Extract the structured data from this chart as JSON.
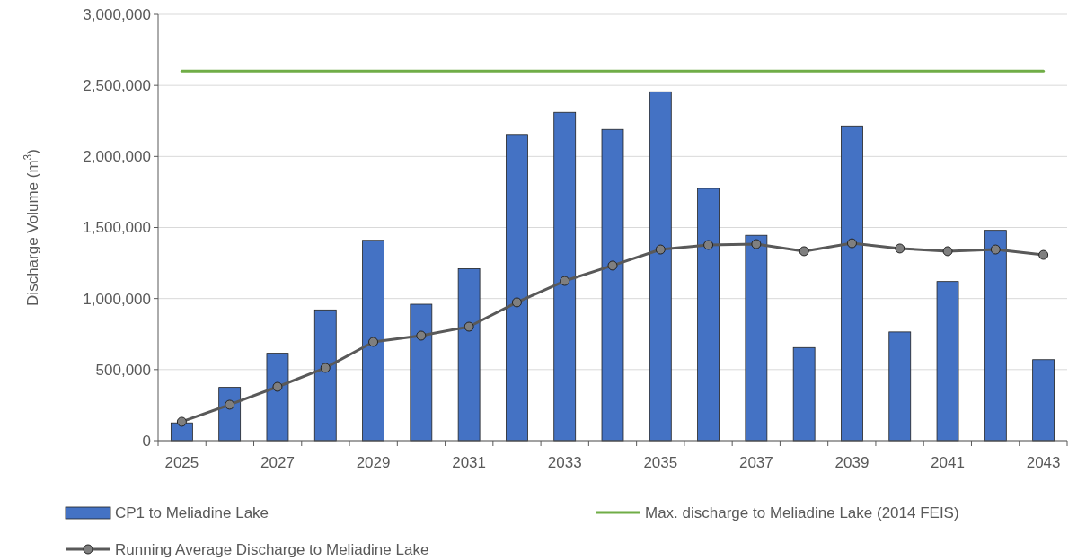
{
  "chart_data": {
    "type": "bar",
    "categories": [
      "2025",
      null,
      "2027",
      null,
      "2029",
      null,
      "2031",
      null,
      "2033",
      null,
      "2035",
      null,
      "2037",
      null,
      "2039",
      null,
      "2041",
      null,
      "2043"
    ],
    "ylabel": "Discharge Volume (m$^{3}$)",
    "ylim": [
      0,
      3000000
    ],
    "yticks": [
      {
        "value": 0,
        "label": "0"
      },
      {
        "value": 500000,
        "label": "500,000"
      },
      {
        "value": 1000000,
        "label": "1,000,000"
      },
      {
        "value": 1500000,
        "label": "1,500,000"
      },
      {
        "value": 2000000,
        "label": "2,000,000"
      },
      {
        "value": 2500000,
        "label": "2,500,000"
      },
      {
        "value": 3000000,
        "label": "3,000,000"
      }
    ],
    "grid": "y",
    "legend": "bottom",
    "series": [
      {
        "name": "CP1 to Meliadine Lake",
        "color": "#4472c4",
        "values": [
          125000,
          375000,
          615000,
          920000,
          1410000,
          960000,
          1210000,
          2155000,
          2310000,
          2190000,
          2455000,
          1775000,
          1445000,
          655000,
          2215000,
          765000,
          1120000,
          1480000,
          570000
        ]
      },
      {
        "name": "Max. discharge to Meliadine Lake (2014 FEIS)",
        "type": "line",
        "color": "#70ad47",
        "marker": "none",
        "values": [
          2600000,
          2600000,
          2600000,
          2600000,
          2600000,
          2600000,
          2600000,
          2600000,
          2600000,
          2600000,
          2600000,
          2600000,
          2600000,
          2600000,
          2600000,
          2600000,
          2600000,
          2600000,
          2600000
        ]
      },
      {
        "name": "Running Average Discharge to Meliadine Lake",
        "type": "line",
        "color": "#595959",
        "marker": "circle",
        "values": [
          133000,
          253000,
          379000,
          512000,
          695000,
          739000,
          802000,
          973000,
          1124000,
          1232000,
          1345000,
          1377000,
          1383000,
          1333000,
          1389000,
          1352000,
          1333000,
          1345000,
          1307000
        ]
      }
    ]
  }
}
